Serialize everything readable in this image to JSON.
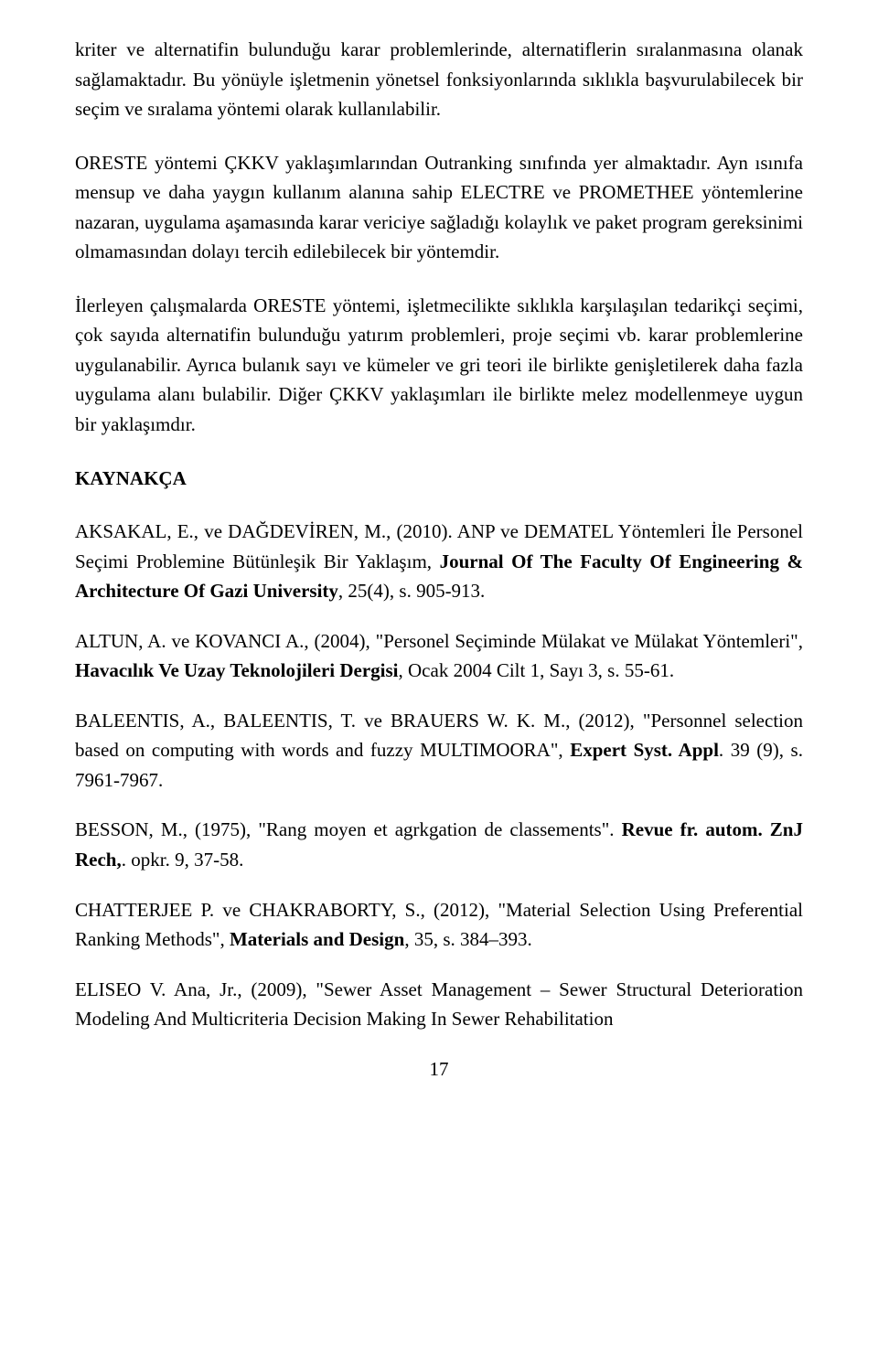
{
  "paragraphs": {
    "p1": "kriter ve alternatifin bulunduğu karar problemlerinde, alternatiflerin sıralanmasına olanak sağlamaktadır. Bu yönüyle işletmenin yönetsel fonksiyonlarında sıklıkla başvurulabilecek bir seçim ve sıralama yöntemi olarak kullanılabilir.",
    "p2": "ORESTE yöntemi ÇKKV yaklaşımlarından Outranking sınıfında yer almaktadır. Ayn ısınıfa mensup ve daha yaygın kullanım alanına sahip ELECTRE ve PROMETHEE yöntemlerine nazaran, uygulama aşamasında karar vericiye sağladığı kolaylık ve paket program gereksinimi olmamasından dolayı tercih edilebilecek bir yöntemdir.",
    "p3": "İlerleyen çalışmalarda ORESTE yöntemi, işletmecilikte sıklıkla karşılaşılan tedarikçi seçimi, çok sayıda alternatifin bulunduğu yatırım problemleri, proje seçimi vb. karar problemlerine uygulanabilir. Ayrıca bulanık sayı ve kümeler ve gri teori ile birlikte genişletilerek daha fazla uygulama alanı bulabilir. Diğer ÇKKV yaklaşımları ile birlikte melez modellenmeye uygun bir yaklaşımdır.",
    "heading": "KAYNAKÇA"
  },
  "refs": {
    "r1a": "AKSAKAL, E., ve DAĞDEVİREN, M., (2010). ANP ve DEMATEL Yöntemleri İle Personel Seçimi Problemine Bütünleşik Bir Yaklaşım, ",
    "r1b": "Journal Of The Faculty Of Engineering & Architecture Of Gazi University",
    "r1c": ", 25(4), s. 905-913.",
    "r2a": "ALTUN, A. ve KOVANCI A., (2004), \"Personel Seçiminde Mülakat ve Mülakat Yöntemleri\", ",
    "r2b": "Havacılık Ve Uzay Teknolojileri Dergisi",
    "r2c": ", Ocak 2004 Cilt 1, Sayı 3, s. 55-61.",
    "r3a": "BALEENTIS, A., BALEENTIS, T. ve BRAUERS W. K. M., (2012), \"Personnel selection based on computing with words and fuzzy MULTIMOORA\", ",
    "r3b": "Expert Syst. Appl",
    "r3c": ". 39 (9), s. 7961-7967.",
    "r4a": "BESSON, M., (1975), \"Rang moyen et agrkgation de classements\". ",
    "r4b": "Revue fr. autom. ZnJ Rech,",
    "r4c": ". opkr. 9, 37-58.",
    "r5a": "CHATTERJEE P. ve CHAKRABORTY, S., (2012), \"Material Selection Using Preferential Ranking Methods\", ",
    "r5b": "Materials and Design",
    "r5c": ", 35, s. 384–393.",
    "r6a": "ELISEO V. Ana, Jr., (2009), \"Sewer Asset Management – Sewer Structural Deterioration Modeling And Multicriteria Decision Making In Sewer Rehabilitation"
  },
  "pageNumber": "17"
}
